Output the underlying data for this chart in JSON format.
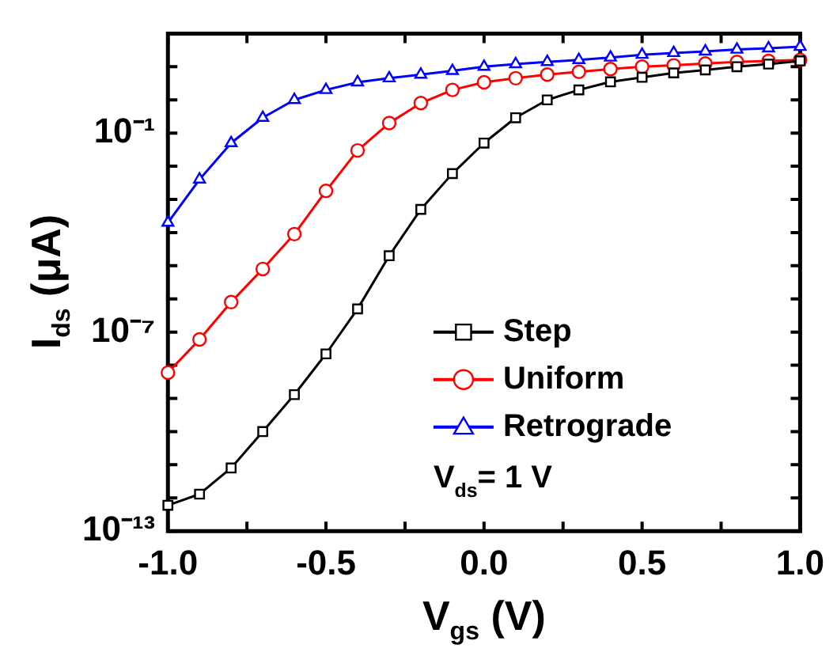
{
  "chart_data": {
    "type": "line",
    "xlabel": "V$_{gs}$ (V)",
    "ylabel": "I$_{ds}$ (μA)",
    "x": [
      -1.0,
      -0.9,
      -0.8,
      -0.7,
      -0.6,
      -0.5,
      -0.4,
      -0.3,
      -0.2,
      -0.1,
      0.0,
      0.1,
      0.2,
      0.3,
      0.4,
      0.5,
      0.6,
      0.7,
      0.8,
      0.9,
      1.0
    ],
    "series": [
      {
        "name": "Step",
        "color": "#000000",
        "marker": "square",
        "values": [
          6e-13,
          1.3e-12,
          8e-12,
          1e-10,
          1.3e-09,
          2.2e-08,
          5e-07,
          2e-05,
          0.0005,
          0.006,
          0.05,
          0.29,
          1.0,
          2.0,
          3.5,
          4.8,
          6.5,
          8,
          10,
          12,
          15
        ]
      },
      {
        "name": "Uniform",
        "color": "#ff0000",
        "marker": "circle",
        "values": [
          6e-09,
          6e-08,
          8e-07,
          8e-06,
          9e-05,
          0.0018,
          0.03,
          0.2,
          0.8,
          2.0,
          3.4,
          4.5,
          5.8,
          7,
          8.5,
          10,
          11,
          12.5,
          14,
          15,
          16
        ]
      },
      {
        "name": "Retrograde",
        "color": "#0000ff",
        "marker": "triangle",
        "values": [
          0.0002,
          0.004,
          0.05,
          0.29,
          1.0,
          2.0,
          3.4,
          4.5,
          5.8,
          7.5,
          10,
          12,
          14,
          16,
          19,
          23,
          26,
          29,
          33,
          36,
          40
        ]
      }
    ],
    "log": "y",
    "xlim": [
      -1.0,
      1.0
    ],
    "xticks": [
      {
        "value": -1.0,
        "label": "-1.0"
      },
      {
        "value": -0.75,
        "label": null
      },
      {
        "value": -0.5,
        "label": "-0.5"
      },
      {
        "value": -0.25,
        "label": null
      },
      {
        "value": 0.0,
        "label": "0.0"
      },
      {
        "value": 0.25,
        "label": null
      },
      {
        "value": 0.5,
        "label": "0.5"
      },
      {
        "value": 0.75,
        "label": null
      },
      {
        "value": 1.0,
        "label": "1.0"
      }
    ],
    "ylim": [
      1e-13,
      100
    ],
    "yticks": [
      {
        "value": 1e-13,
        "label": "10⁻¹³"
      },
      {
        "value": 1e-12,
        "label": null
      },
      {
        "value": 1e-11,
        "label": null
      },
      {
        "value": 1e-10,
        "label": null
      },
      {
        "value": 1e-09,
        "label": null
      },
      {
        "value": 1e-08,
        "label": null
      },
      {
        "value": 1e-07,
        "label": "10⁻⁷"
      },
      {
        "value": 1e-06,
        "label": null
      },
      {
        "value": 1e-05,
        "label": null
      },
      {
        "value": 0.0001,
        "label": null
      },
      {
        "value": 0.001,
        "label": null
      },
      {
        "value": 0.01,
        "label": null
      },
      {
        "value": 0.1,
        "label": "10⁻¹"
      },
      {
        "value": 1,
        "label": null
      },
      {
        "value": 10,
        "label": null
      },
      {
        "value": 100,
        "label": null
      }
    ],
    "grid": false,
    "legend": "bottom right",
    "line_style": "solid",
    "annotations": [
      "V$_{ds}$= 1 V"
    ]
  }
}
